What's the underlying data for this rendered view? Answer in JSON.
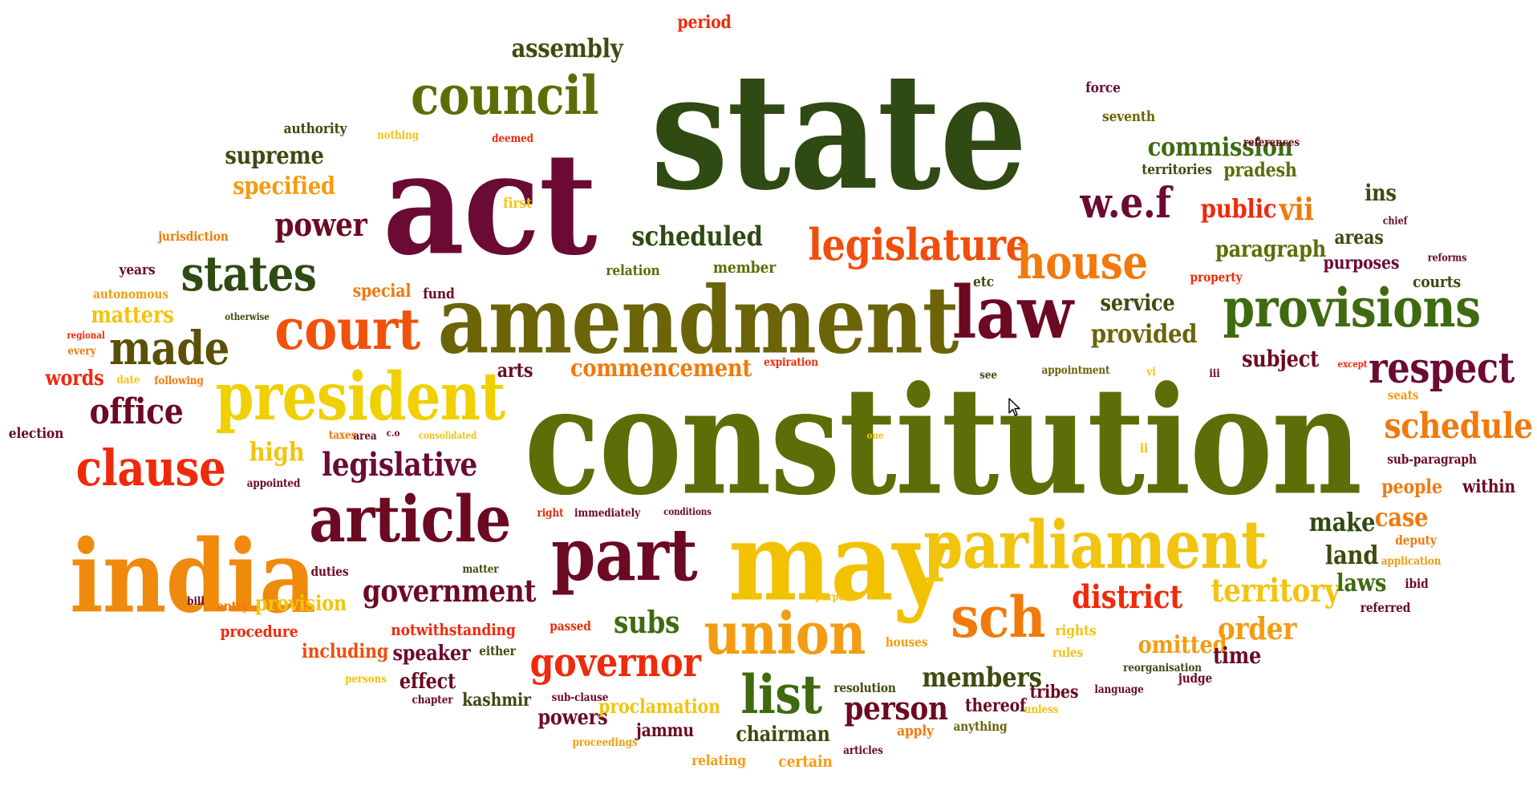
{
  "words": [
    {
      "text": "state",
      "color": "#2f4a12"
    },
    {
      "text": "act",
      "color": "#6b0a33"
    },
    {
      "text": "constitution",
      "color": "#5c6e07"
    },
    {
      "text": "amendment",
      "color": "#6b6409"
    },
    {
      "text": "may",
      "color": "#f2c200"
    },
    {
      "text": "india",
      "color": "#ef8a0c"
    },
    {
      "text": "parliament",
      "color": "#f1c40f"
    },
    {
      "text": "president",
      "color": "#f0d000"
    },
    {
      "text": "law",
      "color": "#6b0a22"
    },
    {
      "text": "council",
      "color": "#5c6e07"
    },
    {
      "text": "part",
      "color": "#6b0a22"
    },
    {
      "text": "article",
      "color": "#6b0a22"
    },
    {
      "text": "union",
      "color": "#f39c12"
    },
    {
      "text": "provisions",
      "color": "#3f6a10"
    },
    {
      "text": "court",
      "color": "#f0520c"
    },
    {
      "text": "states",
      "color": "#2f4a12"
    },
    {
      "text": "legislature",
      "color": "#f04e0c"
    },
    {
      "text": "sch",
      "color": "#f07a0c"
    },
    {
      "text": "clause",
      "color": "#ef2a0c"
    },
    {
      "text": "house",
      "color": "#f07a0c"
    },
    {
      "text": "made",
      "color": "#5c5009"
    },
    {
      "text": "respect",
      "color": "#6b0a33"
    },
    {
      "text": "list",
      "color": "#3f6a10"
    },
    {
      "text": "governor",
      "color": "#ef2a0c"
    },
    {
      "text": "schedule",
      "color": "#f07a0c"
    },
    {
      "text": "w.e.f",
      "color": "#6b0a33"
    },
    {
      "text": "office",
      "color": "#6b0a22"
    },
    {
      "text": "district",
      "color": "#ef2a0c"
    },
    {
      "text": "territory",
      "color": "#f1c40f"
    },
    {
      "text": "legislative",
      "color": "#6b0a33"
    },
    {
      "text": "government",
      "color": "#6b0a22"
    },
    {
      "text": "order",
      "color": "#f39c12"
    },
    {
      "text": "subs",
      "color": "#3f6a10"
    },
    {
      "text": "power",
      "color": "#6b0a22"
    },
    {
      "text": "scheduled",
      "color": "#2f4a12"
    },
    {
      "text": "person",
      "color": "#6b0a22"
    },
    {
      "text": "assembly",
      "color": "#3f4a10"
    },
    {
      "text": "members",
      "color": "#3f4a10"
    },
    {
      "text": "commencement",
      "color": "#f07a0c"
    },
    {
      "text": "commission",
      "color": "#3f6a10"
    },
    {
      "text": "supreme",
      "color": "#3f4a10"
    },
    {
      "text": "specified",
      "color": "#f39c12"
    },
    {
      "text": "provided",
      "color": "#6b6409"
    },
    {
      "text": "paragraph",
      "color": "#5c6e07"
    },
    {
      "text": "service",
      "color": "#3f4a10"
    },
    {
      "text": "public",
      "color": "#ef2a0c"
    },
    {
      "text": "vii",
      "color": "#f07a0c"
    },
    {
      "text": "ins",
      "color": "#3f4a10"
    },
    {
      "text": "high",
      "color": "#f1c40f"
    },
    {
      "text": "case",
      "color": "#f07a0c"
    },
    {
      "text": "make",
      "color": "#2f4a12"
    },
    {
      "text": "land",
      "color": "#3f4a10"
    },
    {
      "text": "laws",
      "color": "#3f6a10"
    },
    {
      "text": "omitted",
      "color": "#f39c12"
    },
    {
      "text": "time",
      "color": "#6b0a22"
    },
    {
      "text": "subject",
      "color": "#6b0a22"
    },
    {
      "text": "matters",
      "color": "#f1c40f"
    },
    {
      "text": "words",
      "color": "#ef2a0c"
    },
    {
      "text": "provision",
      "color": "#f1c40f"
    },
    {
      "text": "speaker",
      "color": "#6b0a33"
    },
    {
      "text": "including",
      "color": "#f04e0c"
    },
    {
      "text": "effect",
      "color": "#6b0a22"
    },
    {
      "text": "powers",
      "color": "#6b0a33"
    },
    {
      "text": "proclamation",
      "color": "#f1c40f"
    },
    {
      "text": "chairman",
      "color": "#3f4a10"
    },
    {
      "text": "kashmir",
      "color": "#3f4a10"
    },
    {
      "text": "jammu",
      "color": "#6b0a22"
    },
    {
      "text": "thereof",
      "color": "#6b0a22"
    },
    {
      "text": "tribes",
      "color": "#6b0a22"
    },
    {
      "text": "people",
      "color": "#f07a0c"
    },
    {
      "text": "within",
      "color": "#6b0a22"
    },
    {
      "text": "areas",
      "color": "#3f4a10"
    },
    {
      "text": "purposes",
      "color": "#6b0a33"
    },
    {
      "text": "pradesh",
      "color": "#5c6e07"
    },
    {
      "text": "courts",
      "color": "#3f4a10"
    },
    {
      "text": "arts",
      "color": "#6b0a22"
    },
    {
      "text": "special",
      "color": "#f07a0c"
    },
    {
      "text": "authority",
      "color": "#3f4a10"
    },
    {
      "text": "election",
      "color": "#6b0a22"
    },
    {
      "text": "notwithstanding",
      "color": "#ef2a0c"
    },
    {
      "text": "procedure",
      "color": "#ef2a0c"
    },
    {
      "text": "relating",
      "color": "#f39c12"
    },
    {
      "text": "certain",
      "color": "#f39c12"
    },
    {
      "text": "seventh",
      "color": "#6b6409"
    },
    {
      "text": "territories",
      "color": "#3f4a10"
    },
    {
      "text": "force",
      "color": "#6b0a33"
    },
    {
      "text": "member",
      "color": "#5c6e07"
    },
    {
      "text": "relation",
      "color": "#5c6e07"
    },
    {
      "text": "etc",
      "color": "#3f4a10"
    },
    {
      "text": "years",
      "color": "#6b0a33"
    },
    {
      "text": "fund",
      "color": "#6b0a22"
    },
    {
      "text": "first",
      "color": "#f1c40f"
    },
    {
      "text": "deemed",
      "color": "#ef2a0c"
    },
    {
      "text": "period",
      "color": "#ef2a0c"
    },
    {
      "text": "nothing",
      "color": "#f1c40f"
    },
    {
      "text": "references",
      "color": "#6b0a22"
    },
    {
      "text": "chief",
      "color": "#6b0a22"
    },
    {
      "text": "reforms",
      "color": "#6b0a22"
    },
    {
      "text": "property",
      "color": "#ef2a0c"
    },
    {
      "text": "jurisdiction",
      "color": "#f07a0c"
    },
    {
      "text": "autonomous",
      "color": "#f39c12"
    },
    {
      "text": "otherwise",
      "color": "#3f4a10"
    },
    {
      "text": "regional",
      "color": "#ef2a0c"
    },
    {
      "text": "every",
      "color": "#f07a0c"
    },
    {
      "text": "date",
      "color": "#f1c40f"
    },
    {
      "text": "following",
      "color": "#f07a0c"
    },
    {
      "text": "expiration",
      "color": "#ef2a0c"
    },
    {
      "text": "see",
      "color": "#3f4a10"
    },
    {
      "text": "appointment",
      "color": "#6b6409"
    },
    {
      "text": "vi",
      "color": "#f1c40f"
    },
    {
      "text": "iii",
      "color": "#6b0a22"
    },
    {
      "text": "except",
      "color": "#ef2a0c"
    },
    {
      "text": "seats",
      "color": "#f39c12"
    },
    {
      "text": "sub-paragraph",
      "color": "#6b0a22"
    },
    {
      "text": "taxes",
      "color": "#f07a0c"
    },
    {
      "text": "area",
      "color": "#6b0a22"
    },
    {
      "text": "c.o",
      "color": "#6b0a22"
    },
    {
      "text": "consolidated",
      "color": "#f1c40f"
    },
    {
      "text": "one",
      "color": "#f1c40f"
    },
    {
      "text": "ii",
      "color": "#f1c40f"
    },
    {
      "text": "appointed",
      "color": "#6b0a22"
    },
    {
      "text": "right",
      "color": "#ef2a0c"
    },
    {
      "text": "immediately",
      "color": "#6b0a22"
    },
    {
      "text": "conditions",
      "color": "#6b0a22"
    },
    {
      "text": "deputy",
      "color": "#f07a0c"
    },
    {
      "text": "application",
      "color": "#f39c12"
    },
    {
      "text": "ibid",
      "color": "#6b0a22"
    },
    {
      "text": "referred",
      "color": "#6b0a22"
    },
    {
      "text": "duties",
      "color": "#6b0a22"
    },
    {
      "text": "matter",
      "color": "#3f4a10"
    },
    {
      "text": "bill",
      "color": "#6b0a22"
    },
    {
      "text": "entry",
      "color": "#f07a0c"
    },
    {
      "text": "purpose",
      "color": "#f1c40f"
    },
    {
      "text": "passed",
      "color": "#ef2a0c"
    },
    {
      "text": "either",
      "color": "#3f4a10"
    },
    {
      "text": "houses",
      "color": "#f39c12"
    },
    {
      "text": "rights",
      "color": "#f1c40f"
    },
    {
      "text": "rules",
      "color": "#f1c40f"
    },
    {
      "text": "reorganisation",
      "color": "#3f4a10"
    },
    {
      "text": "judge",
      "color": "#6b0a22"
    },
    {
      "text": "language",
      "color": "#6b0a22"
    },
    {
      "text": "unless",
      "color": "#f1c40f"
    },
    {
      "text": "anything",
      "color": "#6b6409"
    },
    {
      "text": "apply",
      "color": "#f07a0c"
    },
    {
      "text": "articles",
      "color": "#6b0a22"
    },
    {
      "text": "resolution",
      "color": "#3f4a10"
    },
    {
      "text": "persons",
      "color": "#f1c40f"
    },
    {
      "text": "chapter",
      "color": "#6b0a22"
    },
    {
      "text": "sub-clause",
      "color": "#6b0a22"
    },
    {
      "text": "proceedings",
      "color": "#f39c12"
    }
  ]
}
